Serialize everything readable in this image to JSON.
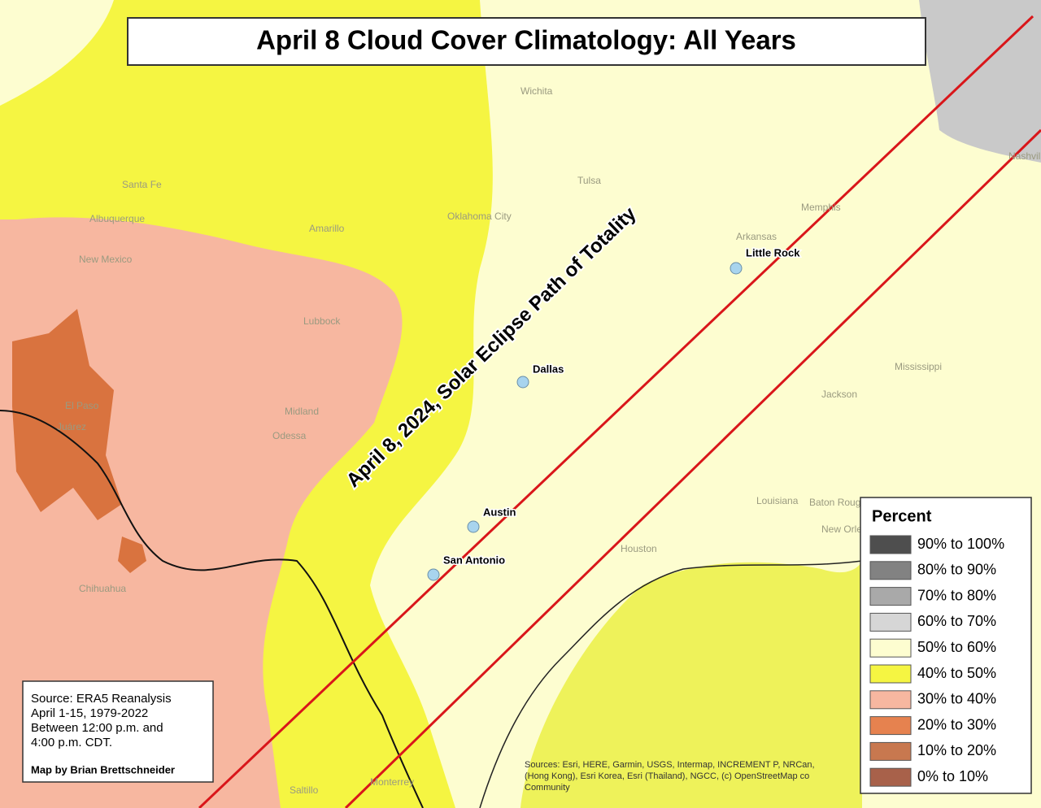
{
  "title": "April 8 Cloud Cover Climatology: All Years",
  "path_label": "April 8, 2024, Solar Eclipse Path of Totality",
  "cities": [
    "Little Rock",
    "Dallas",
    "Austin",
    "San Antonio"
  ],
  "basemap_labels": [
    "Wichita",
    "Tulsa",
    "Oklahoma City",
    "Amarillo",
    "Santa Fe",
    "Albuquerque",
    "New Mexico",
    "Lubbock",
    "El Paso",
    "Juárez",
    "Midland",
    "Odessa",
    "Chihuahua",
    "Houston",
    "Memphis",
    "Arkansas",
    "Mississippi",
    "Jackson",
    "Louisiana",
    "Baton Rouge",
    "New Orleans",
    "Nashville",
    "Monterrey",
    "Saltillo"
  ],
  "legend": {
    "title": "Percent",
    "items": [
      {
        "label": "90% to 100%",
        "color": "#4e4e4e"
      },
      {
        "label": "80% to 90%",
        "color": "#828282"
      },
      {
        "label": "70% to 80%",
        "color": "#a9a9a9"
      },
      {
        "label": "60% to 70%",
        "color": "#d6d6d6"
      },
      {
        "label": "50% to 60%",
        "color": "#fdfdd0"
      },
      {
        "label": "40% to 50%",
        "color": "#f5f542"
      },
      {
        "label": "30% to 40%",
        "color": "#f7b7a0"
      },
      {
        "label": "20% to 30%",
        "color": "#e6824f"
      },
      {
        "label": "10% to 20%",
        "color": "#c8784f"
      },
      {
        "label": "0% to 10%",
        "color": "#a8614a"
      }
    ]
  },
  "source": {
    "lines": [
      "Source: ERA5 Reanalysis",
      "April 1-15, 1979-2022",
      "Between 12:00 p.m. and",
      "4:00 p.m. CDT."
    ],
    "credit": "Map by Brian Brettschneider"
  },
  "attribution": [
    "Sources: Esri, HERE, Garmin, USGS, Intermap, INCREMENT P, NRCan,",
    "(Hong Kong), Esri Korea, Esri (Thailand), NGCC, (c) OpenStreetMap co",
    "Community"
  ]
}
